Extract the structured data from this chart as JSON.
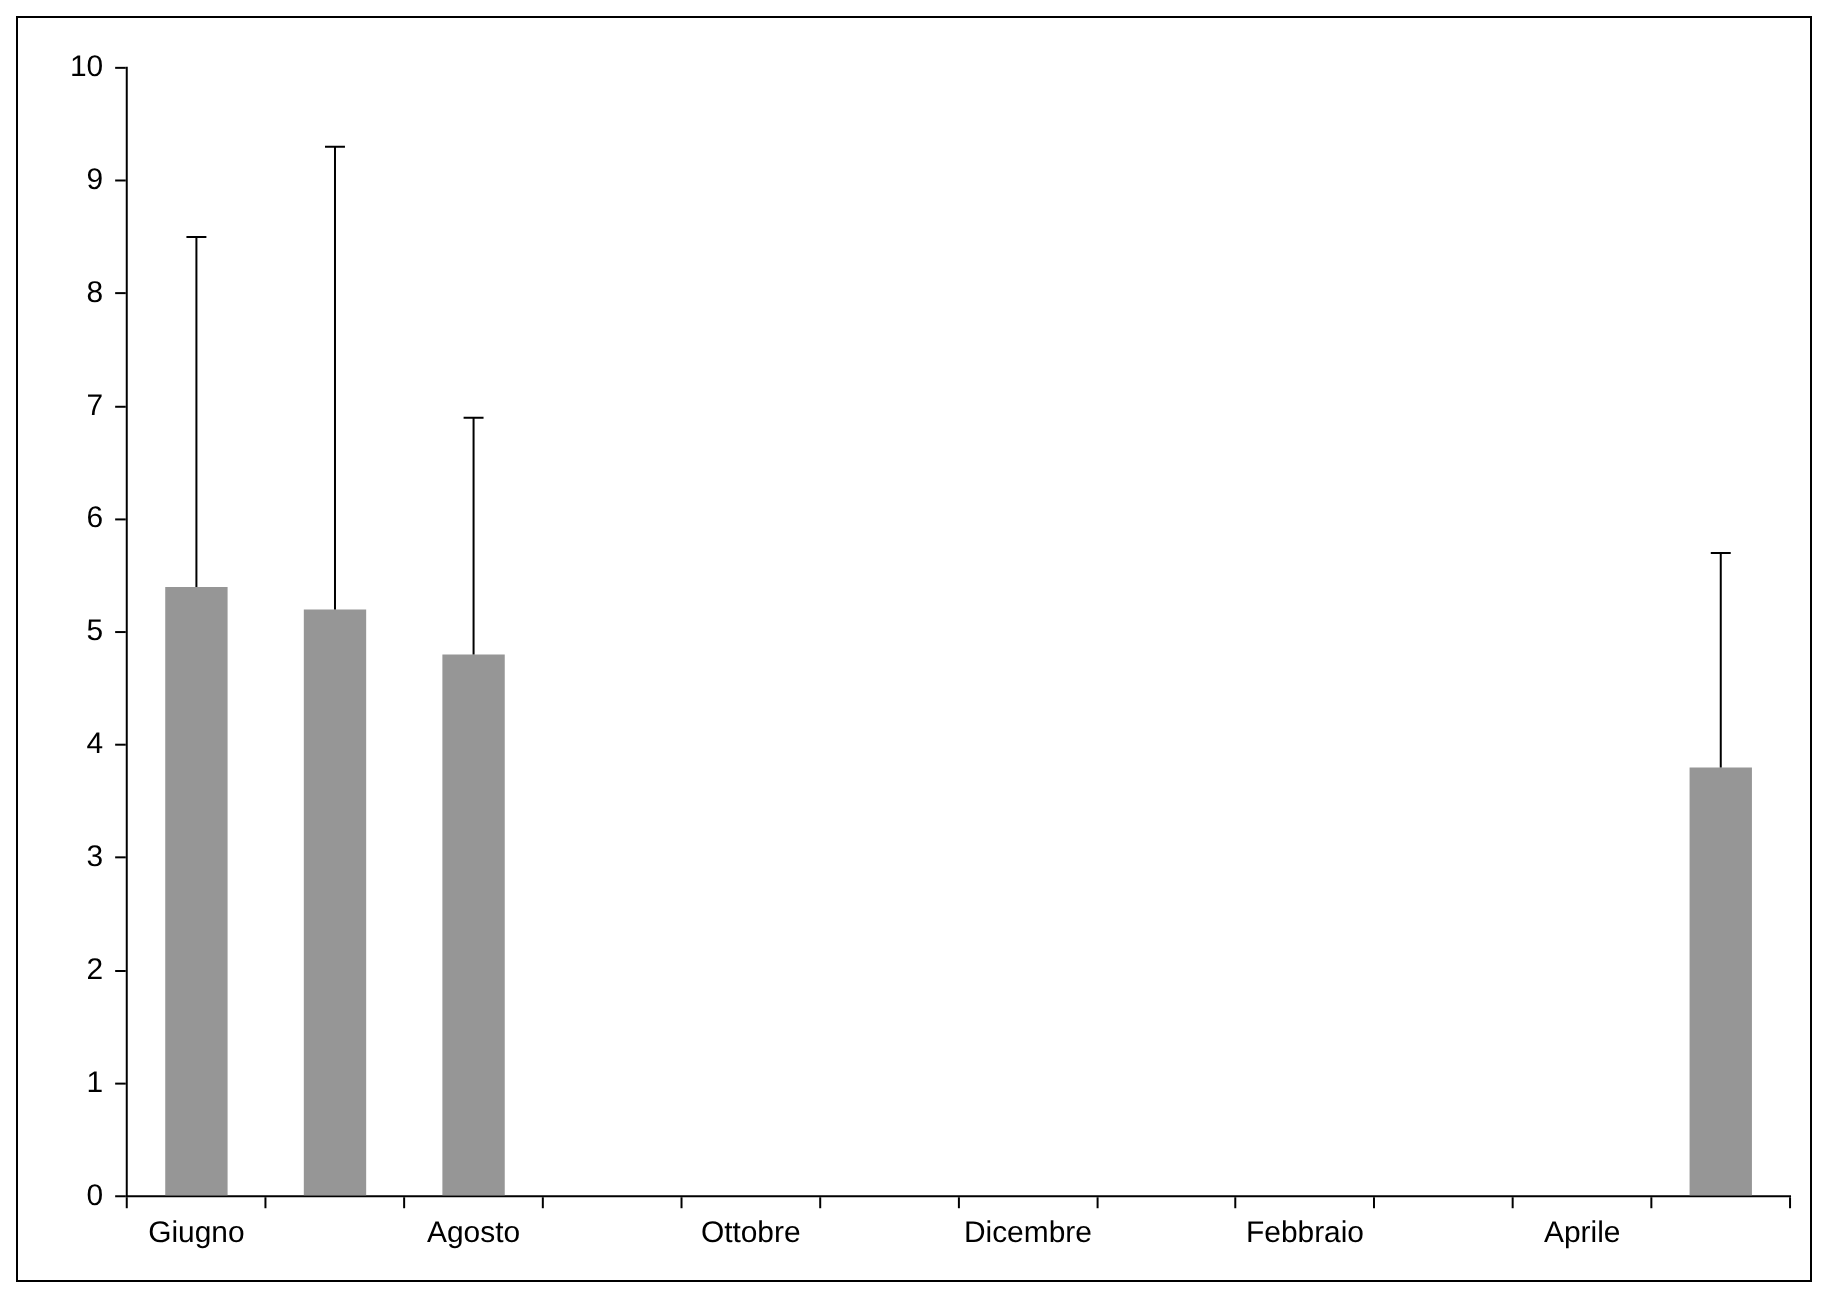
{
  "chart_data": {
    "type": "bar",
    "categories": [
      "Giugno",
      null,
      "Agosto",
      null,
      "Ottobre",
      null,
      "Dicembre",
      null,
      "Febbraio",
      null,
      "Aprile",
      null
    ],
    "values": [
      5.4,
      5.2,
      4.8,
      null,
      null,
      null,
      null,
      null,
      null,
      null,
      null,
      3.8
    ],
    "errors": [
      [
        5.4,
        8.5
      ],
      [
        5.2,
        9.3
      ],
      [
        4.8,
        6.9
      ],
      null,
      null,
      null,
      null,
      null,
      null,
      null,
      null,
      [
        3.8,
        5.7
      ]
    ],
    "color": "#969696",
    "ylim": [
      0,
      10
    ],
    "yticks": [
      0,
      1,
      2,
      3,
      4,
      5,
      6,
      7,
      8,
      9,
      10
    ],
    "grid": false,
    "legend": false
  }
}
